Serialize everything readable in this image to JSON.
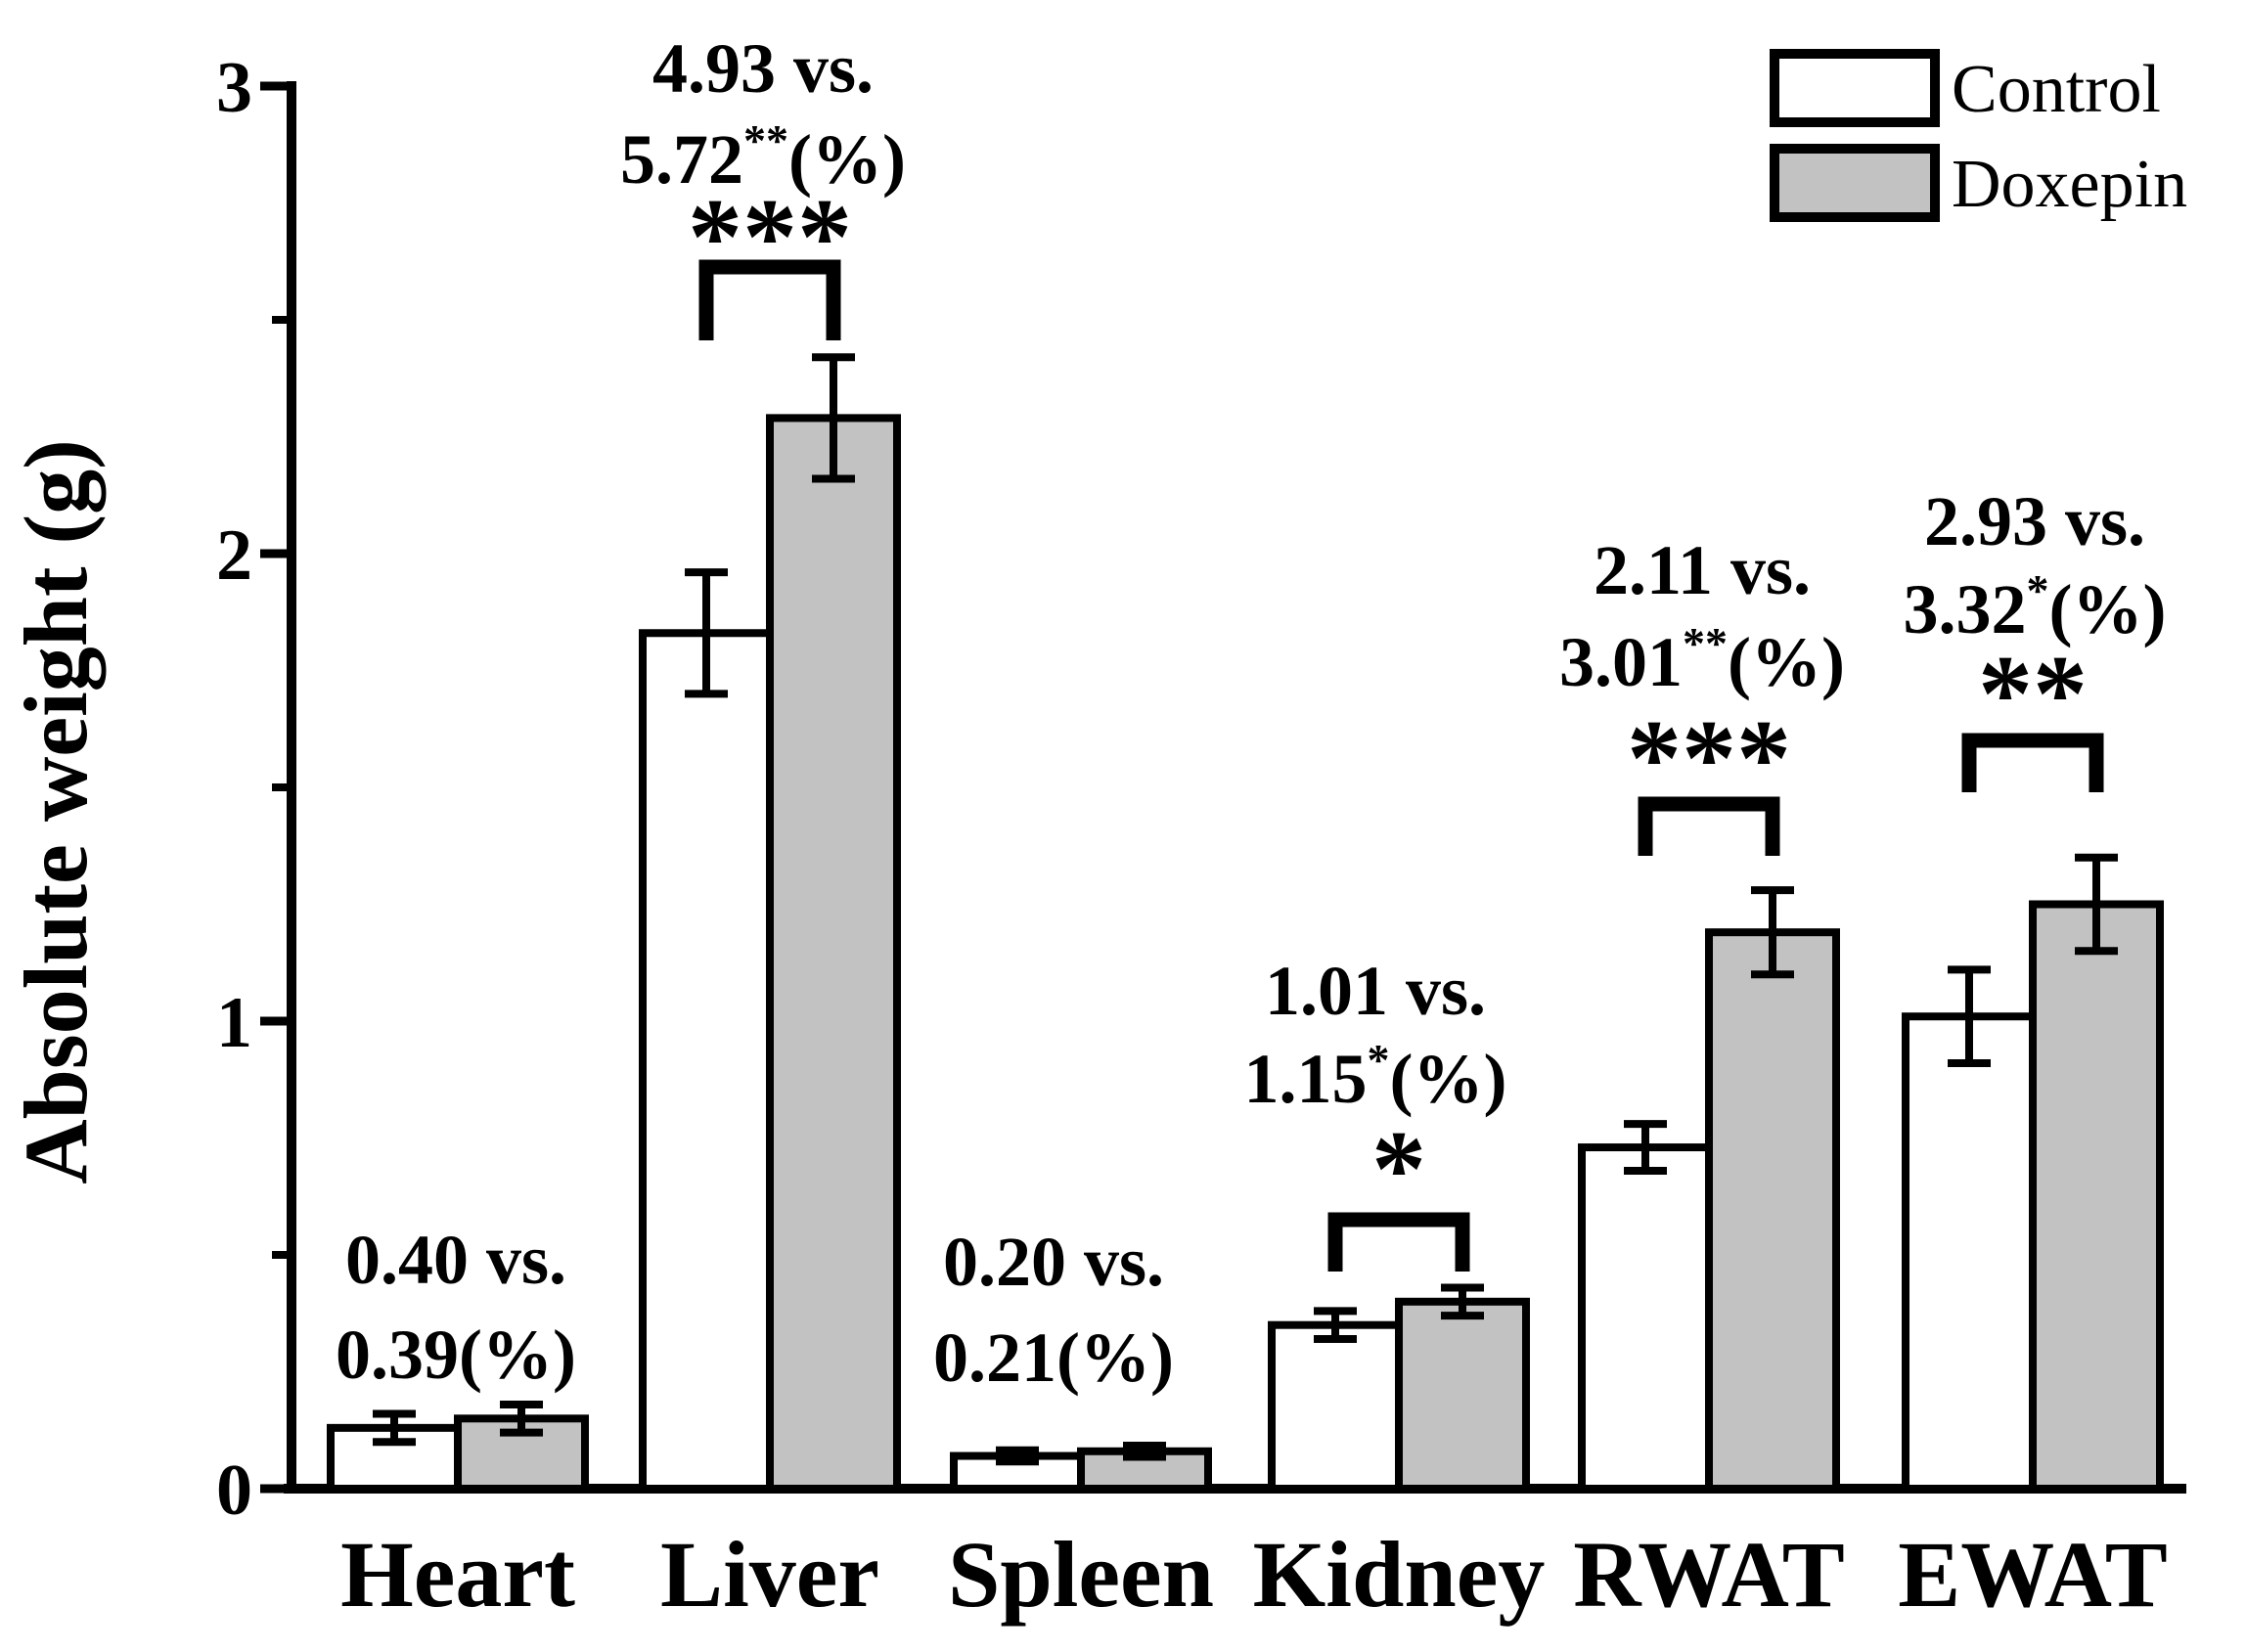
{
  "figure": {
    "background": "#ffffff",
    "axis_color": "#000000",
    "bar_outline_color": "#000000",
    "control_fill": "#ffffff",
    "doxepin_fill": "#c2c2c2"
  },
  "legend": {
    "items": [
      {
        "label": "Control",
        "fill": "#ffffff"
      },
      {
        "label": "Doxepin",
        "fill": "#c2c2c2"
      }
    ]
  },
  "chart_data": {
    "type": "bar",
    "title": "",
    "xlabel": "",
    "ylabel": "Absolute weight (g)",
    "ylim": [
      0,
      3
    ],
    "yticks": [
      0,
      1,
      2,
      3
    ],
    "minor_yticks": [
      0.5,
      1.5,
      2.5
    ],
    "grid": false,
    "legend_position": "top-right",
    "categories": [
      "Heart",
      "Liver",
      "Spleen",
      "Kidney",
      "RWAT",
      "EWAT"
    ],
    "series": [
      {
        "name": "Control",
        "fill": "#ffffff",
        "values": [
          0.13,
          1.83,
          0.07,
          0.35,
          0.73,
          1.01
        ],
        "errors": [
          0.03,
          0.13,
          0.012,
          0.03,
          0.05,
          0.1
        ]
      },
      {
        "name": "Doxepin",
        "fill": "#c2c2c2",
        "values": [
          0.15,
          2.29,
          0.08,
          0.4,
          1.19,
          1.25
        ],
        "errors": [
          0.03,
          0.13,
          0.012,
          0.03,
          0.09,
          0.1
        ]
      }
    ],
    "annotations": [
      {
        "category": "Heart",
        "line1": "0.40 vs.",
        "value2": "0.39",
        "sup": "",
        "suffix": "(%)",
        "stars": "",
        "bracket": false
      },
      {
        "category": "Liver",
        "line1": "4.93 vs.",
        "value2": "5.72",
        "sup": "**",
        "suffix": "(%)",
        "stars": "***",
        "bracket": true
      },
      {
        "category": "Spleen",
        "line1": "0.20 vs.",
        "value2": "0.21",
        "sup": "",
        "suffix": "(%)",
        "stars": "",
        "bracket": false
      },
      {
        "category": "Kidney",
        "line1": "1.01 vs.",
        "value2": "1.15",
        "sup": "*",
        "suffix": "(%)",
        "stars": "*",
        "bracket": true
      },
      {
        "category": "RWAT",
        "line1": "2.11 vs.",
        "value2": "3.01",
        "sup": "**",
        "suffix": "(%)",
        "stars": "***",
        "bracket": true
      },
      {
        "category": "EWAT",
        "line1": "2.93 vs.",
        "value2": "3.32",
        "sup": "*",
        "suffix": "(%)",
        "stars": "**",
        "bracket": true
      }
    ]
  }
}
